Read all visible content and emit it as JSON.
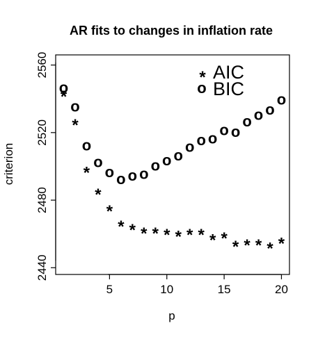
{
  "chart_data": {
    "type": "scatter",
    "title": "AR fits to changes in inflation rate",
    "xlabel": "p",
    "ylabel": "criterion",
    "xlim": [
      0.3,
      20.7
    ],
    "ylim": [
      2436,
      2566
    ],
    "xticks": [
      "5",
      "10",
      "15",
      "20"
    ],
    "yticks": [
      "2440",
      "2480",
      "2520",
      "2560"
    ],
    "legend_position": "top-right",
    "series": [
      {
        "name": "AIC",
        "symbol": "*",
        "x": [
          1,
          2,
          3,
          4,
          5,
          6,
          7,
          8,
          9,
          10,
          11,
          12,
          13,
          14,
          15,
          16,
          17,
          18,
          19,
          20
        ],
        "values": [
          2543,
          2526,
          2498,
          2485,
          2475,
          2466,
          2464,
          2462,
          2462,
          2461,
          2460,
          2461,
          2461,
          2458,
          2459,
          2454,
          2455,
          2455,
          2453,
          2456
        ]
      },
      {
        "name": "BIC",
        "symbol": "o",
        "x": [
          1,
          2,
          3,
          4,
          5,
          6,
          7,
          8,
          9,
          10,
          11,
          12,
          13,
          14,
          15,
          16,
          17,
          18,
          19,
          20
        ],
        "values": [
          2546,
          2535,
          2512,
          2502,
          2496,
          2492,
          2494,
          2495,
          2500,
          2503,
          2506,
          2511,
          2515,
          2516,
          2521,
          2520,
          2526,
          2530,
          2533,
          2539
        ]
      }
    ]
  }
}
